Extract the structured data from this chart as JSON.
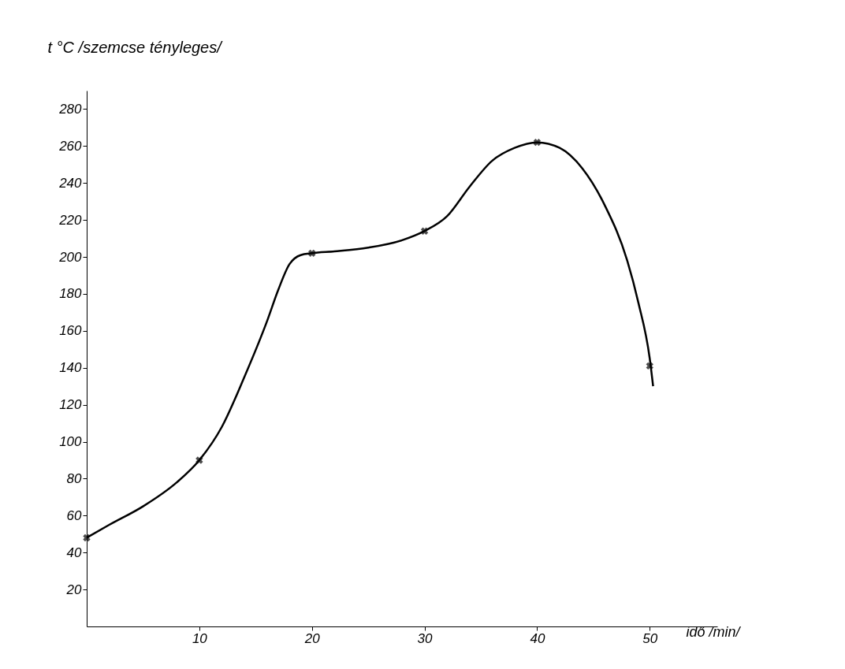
{
  "chart_data": {
    "type": "line",
    "xlabel": "idő /min/",
    "ylabel": "t °C /szemcse tényleges/",
    "xlim": [
      0,
      56
    ],
    "ylim": [
      0,
      290
    ],
    "xticks": [
      10,
      20,
      30,
      40,
      50
    ],
    "yticks": [
      20,
      40,
      60,
      80,
      100,
      120,
      140,
      160,
      180,
      200,
      220,
      240,
      260,
      280
    ],
    "grid": false,
    "series": [
      {
        "color": "#000000",
        "marker": "none",
        "line_style": "solid",
        "x": [
          0,
          2,
          5,
          8,
          10,
          12,
          14,
          16,
          17,
          18,
          19,
          20,
          22,
          25,
          28,
          30,
          32,
          34,
          36,
          38,
          40,
          42,
          44,
          46,
          48,
          49,
          50,
          50.3
        ],
        "values": [
          48,
          55,
          65,
          78,
          90,
          108,
          135,
          165,
          182,
          196,
          201,
          202,
          203,
          205,
          209,
          214,
          222,
          238,
          252,
          259,
          262,
          259,
          248,
          228,
          198,
          175,
          145,
          130
        ]
      },
      {
        "type": "scatter",
        "color": "#000000",
        "marker": "cross",
        "x": [
          0,
          10,
          20,
          30,
          40,
          50
        ],
        "values": [
          48,
          90,
          202,
          214,
          262,
          141
        ]
      }
    ]
  }
}
